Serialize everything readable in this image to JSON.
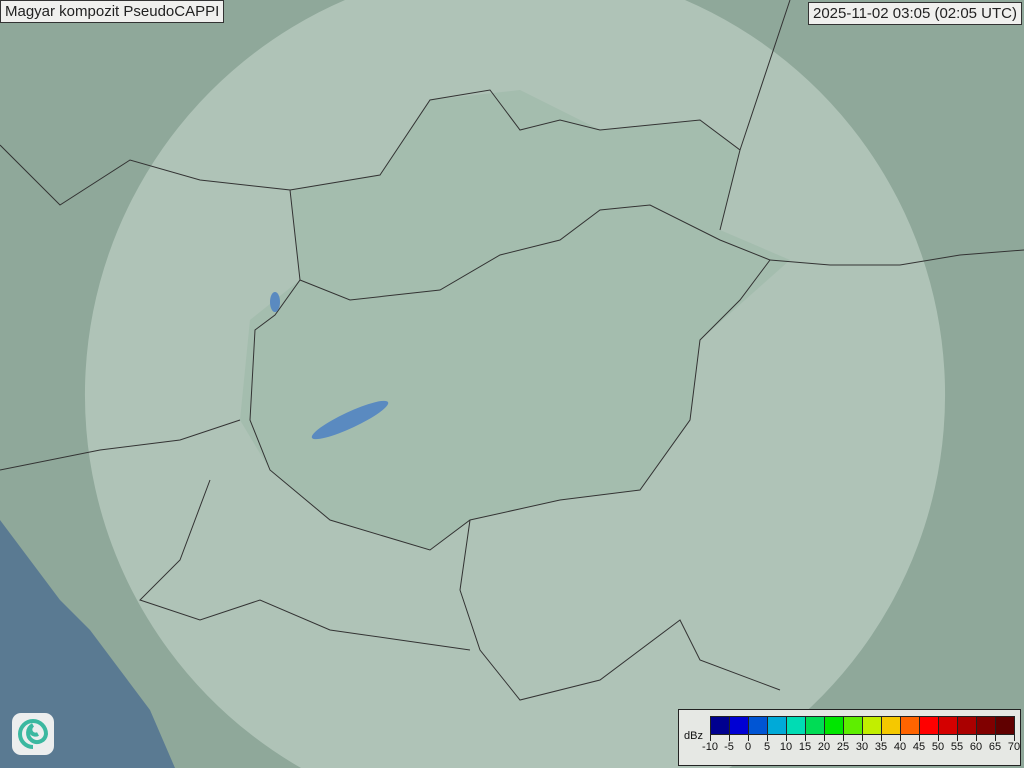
{
  "title": "Magyar kompozit  PseudoCAPPI",
  "timestamp": "2025-11-02 03:05 (02:05 UTC)",
  "legend": {
    "unit": "dBz",
    "ticks": [
      "-10",
      "-5",
      "0",
      "5",
      "10",
      "15",
      "20",
      "25",
      "30",
      "35",
      "40",
      "45",
      "50",
      "55",
      "60",
      "65",
      "70"
    ],
    "colors": [
      "#00008f",
      "#0000d4",
      "#0055d4",
      "#00aad8",
      "#00dcb4",
      "#00dc55",
      "#00e600",
      "#5eee00",
      "#c2ee00",
      "#f5c800",
      "#ff6400",
      "#ff0000",
      "#d40000",
      "#aa0000",
      "#800000",
      "#600000"
    ]
  },
  "colors": {
    "land": "#8fa89a",
    "sea": "#5a7a92",
    "coverage": "#c8d8d0",
    "border": "#333333",
    "water": "#5a8ac0"
  },
  "logo_icon": "swirl-logo-icon"
}
